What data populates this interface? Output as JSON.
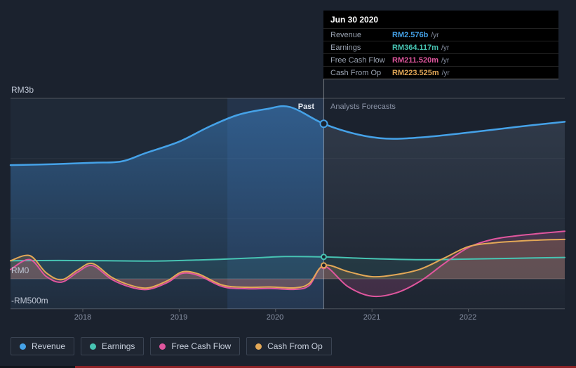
{
  "theme": {
    "background": "#1b222e",
    "tooltip_background": "#000000",
    "highlight_band_color": "#2a3c58",
    "text_muted": "#8a93a6"
  },
  "tooltip": {
    "date": "Jun 30 2020",
    "rows": [
      {
        "label": "Revenue",
        "value": "RM2.576b",
        "suffix": "/yr",
        "color": "#45a2e8"
      },
      {
        "label": "Earnings",
        "value": "RM364.117m",
        "suffix": "/yr",
        "color": "#47c4b3"
      },
      {
        "label": "Free Cash Flow",
        "value": "RM211.520m",
        "suffix": "/yr",
        "color": "#e0569e"
      },
      {
        "label": "Cash From Op",
        "value": "RM223.525m",
        "suffix": "/yr",
        "color": "#e3a857"
      }
    ]
  },
  "labels": {
    "past": "Past",
    "forecast": "Analysts Forecasts"
  },
  "legend": [
    {
      "label": "Revenue",
      "color": "#45a2e8"
    },
    {
      "label": "Earnings",
      "color": "#47c4b3"
    },
    {
      "label": "Free Cash Flow",
      "color": "#e0569e"
    },
    {
      "label": "Cash From Op",
      "color": "#e3a857"
    }
  ],
  "chart_data": {
    "type": "line",
    "x_domain": [
      2017.25,
      2023
    ],
    "y_unit": "RM millions",
    "divider_x": 2020.5,
    "divider_date": "Jun 30 2020",
    "highlight_band": [
      2019.5,
      2020.5
    ],
    "grid": true,
    "legend_position": "bottom",
    "y_ticks": [
      {
        "label": "RM3b",
        "value": 3000
      },
      {
        "label": "RM0",
        "value": 0
      },
      {
        "label": "-RM500m",
        "value": -500
      }
    ],
    "x_ticks": [
      {
        "label": "2018",
        "value": 2018
      },
      {
        "label": "2019",
        "value": 2019
      },
      {
        "label": "2020",
        "value": 2020
      },
      {
        "label": "2021",
        "value": 2021
      },
      {
        "label": "2022",
        "value": 2022
      }
    ],
    "series": [
      {
        "name": "Revenue",
        "color": "#45a2e8",
        "points": [
          [
            2017.25,
            1890
          ],
          [
            2017.7,
            1905
          ],
          [
            2018.1,
            1930
          ],
          [
            2018.4,
            1950
          ],
          [
            2018.65,
            2090
          ],
          [
            2019,
            2280
          ],
          [
            2019.3,
            2520
          ],
          [
            2019.6,
            2720
          ],
          [
            2019.9,
            2820
          ],
          [
            2020.15,
            2855
          ],
          [
            2020.5,
            2576
          ],
          [
            2020.85,
            2400
          ],
          [
            2021.15,
            2330
          ],
          [
            2021.5,
            2350
          ],
          [
            2022,
            2430
          ],
          [
            2022.5,
            2525
          ],
          [
            2023,
            2610
          ]
        ]
      },
      {
        "name": "Earnings",
        "color": "#47c4b3",
        "points": [
          [
            2017.25,
            300
          ],
          [
            2017.75,
            305
          ],
          [
            2018.25,
            300
          ],
          [
            2018.75,
            295
          ],
          [
            2019.25,
            315
          ],
          [
            2019.75,
            345
          ],
          [
            2020.1,
            370
          ],
          [
            2020.5,
            364.117
          ],
          [
            2021,
            335
          ],
          [
            2021.5,
            318
          ],
          [
            2022,
            328
          ],
          [
            2022.5,
            342
          ],
          [
            2023,
            355
          ]
        ]
      },
      {
        "name": "Free Cash Flow",
        "color": "#e0569e",
        "points": [
          [
            2017.25,
            155
          ],
          [
            2017.45,
            320
          ],
          [
            2017.62,
            40
          ],
          [
            2017.78,
            -55
          ],
          [
            2017.95,
            115
          ],
          [
            2018.1,
            220
          ],
          [
            2018.3,
            -10
          ],
          [
            2018.5,
            -140
          ],
          [
            2018.68,
            -175
          ],
          [
            2018.88,
            -60
          ],
          [
            2019.03,
            90
          ],
          [
            2019.2,
            55
          ],
          [
            2019.45,
            -130
          ],
          [
            2019.7,
            -165
          ],
          [
            2019.95,
            -160
          ],
          [
            2020.2,
            -175
          ],
          [
            2020.35,
            -110
          ],
          [
            2020.5,
            211.52
          ],
          [
            2020.75,
            -130
          ],
          [
            2021,
            -290
          ],
          [
            2021.25,
            -235
          ],
          [
            2021.5,
            -40
          ],
          [
            2021.75,
            255
          ],
          [
            2022,
            520
          ],
          [
            2022.25,
            655
          ],
          [
            2022.5,
            715
          ],
          [
            2022.75,
            755
          ],
          [
            2023,
            790
          ]
        ]
      },
      {
        "name": "Cash From Op",
        "color": "#e3a857",
        "points": [
          [
            2017.25,
            300
          ],
          [
            2017.45,
            385
          ],
          [
            2017.62,
            100
          ],
          [
            2017.78,
            -15
          ],
          [
            2017.95,
            150
          ],
          [
            2018.1,
            255
          ],
          [
            2018.3,
            25
          ],
          [
            2018.5,
            -110
          ],
          [
            2018.68,
            -150
          ],
          [
            2018.88,
            -30
          ],
          [
            2019.03,
            115
          ],
          [
            2019.2,
            80
          ],
          [
            2019.45,
            -105
          ],
          [
            2019.7,
            -140
          ],
          [
            2019.95,
            -135
          ],
          [
            2020.2,
            -150
          ],
          [
            2020.35,
            -75
          ],
          [
            2020.5,
            223.525
          ],
          [
            2020.75,
            120
          ],
          [
            2021,
            35
          ],
          [
            2021.25,
            70
          ],
          [
            2021.5,
            160
          ],
          [
            2021.75,
            345
          ],
          [
            2022,
            535
          ],
          [
            2022.25,
            595
          ],
          [
            2022.5,
            625
          ],
          [
            2022.75,
            645
          ],
          [
            2023,
            655
          ]
        ]
      }
    ]
  }
}
